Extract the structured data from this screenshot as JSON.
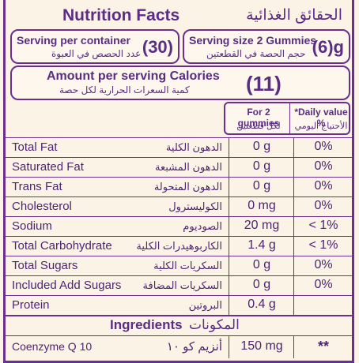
{
  "header": {
    "title": "Nutrition Facts",
    "title_ar": "الحقائق الغذائية"
  },
  "serving": {
    "per_container_label": "Serving per container",
    "per_container_label_ar": "عدد الحصص في العبوة",
    "per_container_value": "(30)",
    "size_label": "Serving size 2 Gummies",
    "size_label_ar": "حجم الحصة في القطعتين",
    "size_value": "(6)g"
  },
  "calories": {
    "label": "Amount per serving Calories",
    "label_ar": "كمية السعرات الحرارية لكل حصة",
    "value": "(11)"
  },
  "table_header": {
    "amount_label": "For 2 gummies",
    "amount_label_ar": "لكل قطعتين",
    "dv_label": "*Daily value %",
    "dv_label_ar": "الأحتياج اليومي"
  },
  "nutrients": [
    {
      "name": "Total Fat",
      "name_ar": "الدهون الكلية",
      "amount": "0 g",
      "dv": "0%"
    },
    {
      "name": "Saturated Fat",
      "name_ar": "الدهون المشبعة",
      "amount": "0 g",
      "dv": "0%"
    },
    {
      "name": "Trans Fat",
      "name_ar": "الدهون المتحولة",
      "amount": "0 g",
      "dv": "0%"
    },
    {
      "name": "Cholesterol",
      "name_ar": "الكوليسترول",
      "amount": "0 mg",
      "dv": "0%"
    },
    {
      "name": "Sodium",
      "name_ar": "الصوديوم",
      "amount": "20 mg",
      "dv": "< 1%"
    },
    {
      "name": "Total Carbohydrate",
      "name_ar": "الكاربوهيدرات الكلية",
      "amount": "1.4 g",
      "dv": "< 1%"
    },
    {
      "name": "Total Sugars",
      "name_ar": "السكريات الكلية",
      "amount": "0 g",
      "dv": "0%"
    },
    {
      "name": "Included Add Sugars",
      "name_ar": "السكريات المضافة",
      "amount": "0 g",
      "dv": "0%"
    },
    {
      "name": "Protein",
      "name_ar": "البروتين",
      "amount": "0.4 g",
      "dv": ""
    }
  ],
  "ingredients": {
    "label": "Ingredients",
    "label_ar": "المكونات",
    "items": [
      {
        "name": "Coenzyme Q 10",
        "name_ar": "أنزيم كو ١٠",
        "amount": "150 mg",
        "dv": "**"
      }
    ]
  }
}
